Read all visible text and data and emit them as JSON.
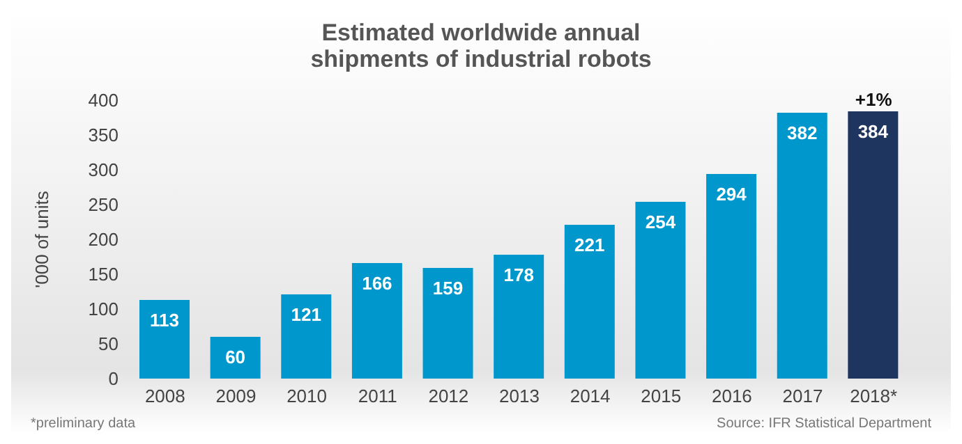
{
  "chart_data": {
    "type": "bar",
    "title": "Estimated worldwide annual shipments of industrial robots",
    "ylabel": "'000 of units",
    "categories": [
      "2008",
      "2009",
      "2010",
      "2011",
      "2012",
      "2013",
      "2014",
      "2015",
      "2016",
      "2017",
      "2018*"
    ],
    "values": [
      113,
      60,
      121,
      166,
      159,
      178,
      221,
      254,
      294,
      382,
      384
    ],
    "colors": [
      "#0098cc",
      "#0098cc",
      "#0098cc",
      "#0098cc",
      "#0098cc",
      "#0098cc",
      "#0098cc",
      "#0098cc",
      "#0098cc",
      "#0098cc",
      "#1e3560"
    ],
    "ylim": [
      0,
      400
    ],
    "yticks": [
      0,
      50,
      100,
      150,
      200,
      250,
      300,
      350,
      400
    ],
    "grid": false,
    "data_labels": true,
    "annotations": [
      {
        "text": "+1%",
        "x": "2018*",
        "y": 384
      },
      "*preliminary data",
      "Source: IFR Statistical Department"
    ]
  }
}
